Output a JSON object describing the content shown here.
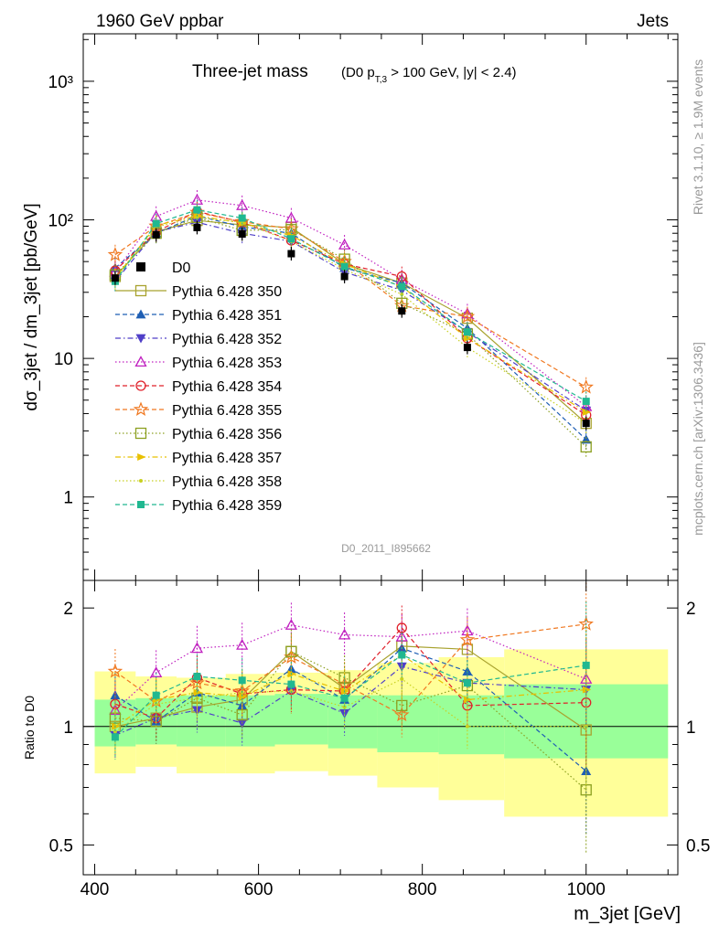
{
  "header": {
    "energy_label": "1960 GeV ppbar",
    "process_label": "Jets",
    "side_label_top": "Rivet 3.1.10, ≥ 1.9M events",
    "side_label_bottom": "mcplots.cern.ch [arXiv:1306.3436]",
    "analysis_id": "D0_2011_I895662"
  },
  "chart_data": [
    {
      "type": "line",
      "title": "Three-jet mass",
      "subtitle": "(D0 p_T,3 > 100 GeV, |y| < 2.4)",
      "xlabel": "",
      "ylabel": "dσ_3jet / dm_3jet [pb/GeV]",
      "yscale": "log",
      "ylim": [
        0.25,
        2200
      ],
      "xlim": [
        386,
        1112
      ],
      "y_tick_labels": [
        "1",
        "10",
        "10²",
        "10³"
      ],
      "x": [
        425,
        475,
        525,
        580,
        640,
        705,
        775,
        855,
        1000
      ],
      "data": {
        "name": "D0",
        "values": [
          38,
          78,
          88,
          79,
          57,
          39,
          22,
          12,
          3.4
        ]
      },
      "series": [
        {
          "name": "Pythia 6.428 350",
          "values": [
            39,
            82,
            99,
            92,
            88,
            48,
            35,
            19.5,
            3.4
          ],
          "color": "#a8a22e",
          "marker": "open-square",
          "dash": "solid"
        },
        {
          "name": "Pythia 6.428 351",
          "values": [
            45,
            80,
            107,
            89,
            80,
            45,
            35,
            16.5,
            2.6
          ],
          "color": "#1f5fb4",
          "marker": "filled-triangle-up",
          "dash": "dashed"
        },
        {
          "name": "Pythia 6.428 352",
          "values": [
            36,
            82,
            96,
            80,
            70,
            42,
            31,
            15.5,
            4.2
          ],
          "color": "#4f3fc8",
          "marker": "filled-triangle-down",
          "dash": "dashdot"
        },
        {
          "name": "Pythia 6.428 353",
          "values": [
            42,
            106,
            139,
            127,
            103,
            66,
            37,
            21,
            4.5
          ],
          "color": "#c020c0",
          "marker": "open-triangle-up",
          "dash": "dotted"
        },
        {
          "name": "Pythia 6.428 354",
          "values": [
            43,
            82,
            115,
            96,
            71,
            48,
            39,
            14,
            3.9
          ],
          "color": "#e0202a",
          "marker": "open-circle",
          "dash": "dashed"
        },
        {
          "name": "Pythia 6.428 355",
          "values": [
            56,
            90,
            113,
            97,
            86,
            50,
            24,
            20,
            6.2
          ],
          "color": "#f07820",
          "marker": "open-star",
          "dash": "dashed"
        },
        {
          "name": "Pythia 6.428 356",
          "values": [
            40,
            80,
            104,
            84,
            85,
            52,
            25,
            15,
            2.3
          ],
          "color": "#8ca020",
          "marker": "open-square",
          "dash": "dotted"
        },
        {
          "name": "Pythia 6.428 357",
          "values": [
            38,
            91,
            107,
            95,
            77,
            48,
            33,
            14,
            4.1
          ],
          "color": "#e8c000",
          "marker": "filled-triangle-right",
          "dash": "dashdot"
        },
        {
          "name": "Pythia 6.428 358",
          "values": [
            37,
            89,
            104,
            96,
            70,
            44,
            29,
            12,
            3.4
          ],
          "color": "#c8d020",
          "marker": "small-dot",
          "dash": "dotted"
        },
        {
          "name": "Pythia 6.428 359",
          "values": [
            36,
            94,
            118,
            103,
            73,
            46,
            33,
            15.5,
            4.9
          ],
          "color": "#20b890",
          "marker": "filled-square",
          "dash": "dashed"
        }
      ]
    },
    {
      "type": "line",
      "title": "",
      "xlabel": "m_3jet [GeV]",
      "ylabel": "Ratio to D0",
      "yscale": "log",
      "ylim": [
        0.42,
        2.35
      ],
      "xlim": [
        386,
        1112
      ],
      "x_tick_labels": [
        "400",
        "600",
        "800",
        "1000"
      ],
      "y_tick_labels": [
        "0.5",
        "1",
        "2"
      ],
      "band_edges": [
        400,
        450,
        500,
        560,
        620,
        685,
        745,
        820,
        900,
        1100
      ],
      "band_stat": [
        [
          0.89,
          1.17
        ],
        [
          0.9,
          1.18
        ],
        [
          0.89,
          1.2
        ],
        [
          0.89,
          1.2
        ],
        [
          0.9,
          1.21
        ],
        [
          0.88,
          1.2
        ],
        [
          0.86,
          1.2
        ],
        [
          0.85,
          1.2
        ],
        [
          0.83,
          1.28
        ]
      ],
      "band_total": [
        [
          0.76,
          1.38
        ],
        [
          0.79,
          1.34
        ],
        [
          0.76,
          1.33
        ],
        [
          0.76,
          1.36
        ],
        [
          0.77,
          1.37
        ],
        [
          0.75,
          1.39
        ],
        [
          0.7,
          1.45
        ],
        [
          0.65,
          1.5
        ],
        [
          0.59,
          1.57
        ]
      ],
      "x": [
        425,
        475,
        525,
        580,
        640,
        705,
        775,
        855,
        1000
      ],
      "series": [
        {
          "name": "Pythia 6.428 350",
          "values": [
            1.0,
            1.05,
            1.12,
            1.17,
            1.55,
            1.25,
            1.6,
            1.57,
            0.98
          ]
        },
        {
          "name": "Pythia 6.428 351",
          "values": [
            1.2,
            1.03,
            1.22,
            1.13,
            1.4,
            1.17,
            1.58,
            1.38,
            0.77
          ]
        },
        {
          "name": "Pythia 6.428 352",
          "values": [
            0.95,
            1.05,
            1.1,
            1.02,
            1.23,
            1.08,
            1.42,
            1.29,
            1.24
          ]
        },
        {
          "name": "Pythia 6.428 353",
          "values": [
            1.1,
            1.37,
            1.58,
            1.61,
            1.81,
            1.71,
            1.69,
            1.75,
            1.32
          ]
        },
        {
          "name": "Pythia 6.428 354",
          "values": [
            1.14,
            1.05,
            1.33,
            1.21,
            1.24,
            1.23,
            1.78,
            1.13,
            1.15
          ]
        },
        {
          "name": "Pythia 6.428 355",
          "values": [
            1.38,
            1.16,
            1.29,
            1.23,
            1.5,
            1.28,
            1.07,
            1.66,
            1.82
          ]
        },
        {
          "name": "Pythia 6.428 356",
          "values": [
            1.05,
            1.03,
            1.18,
            1.07,
            1.55,
            1.33,
            1.13,
            1.27,
            0.69
          ]
        },
        {
          "name": "Pythia 6.428 357",
          "values": [
            1.0,
            1.17,
            1.22,
            1.19,
            1.36,
            1.23,
            1.52,
            1.17,
            1.24
          ]
        },
        {
          "name": "Pythia 6.428 358",
          "values": [
            0.97,
            1.14,
            1.18,
            1.22,
            1.23,
            1.12,
            1.32,
            1.0,
            1.0
          ]
        },
        {
          "name": "Pythia 6.428 359",
          "values": [
            0.94,
            1.2,
            1.34,
            1.31,
            1.28,
            1.18,
            1.52,
            1.29,
            1.43
          ]
        }
      ]
    }
  ]
}
